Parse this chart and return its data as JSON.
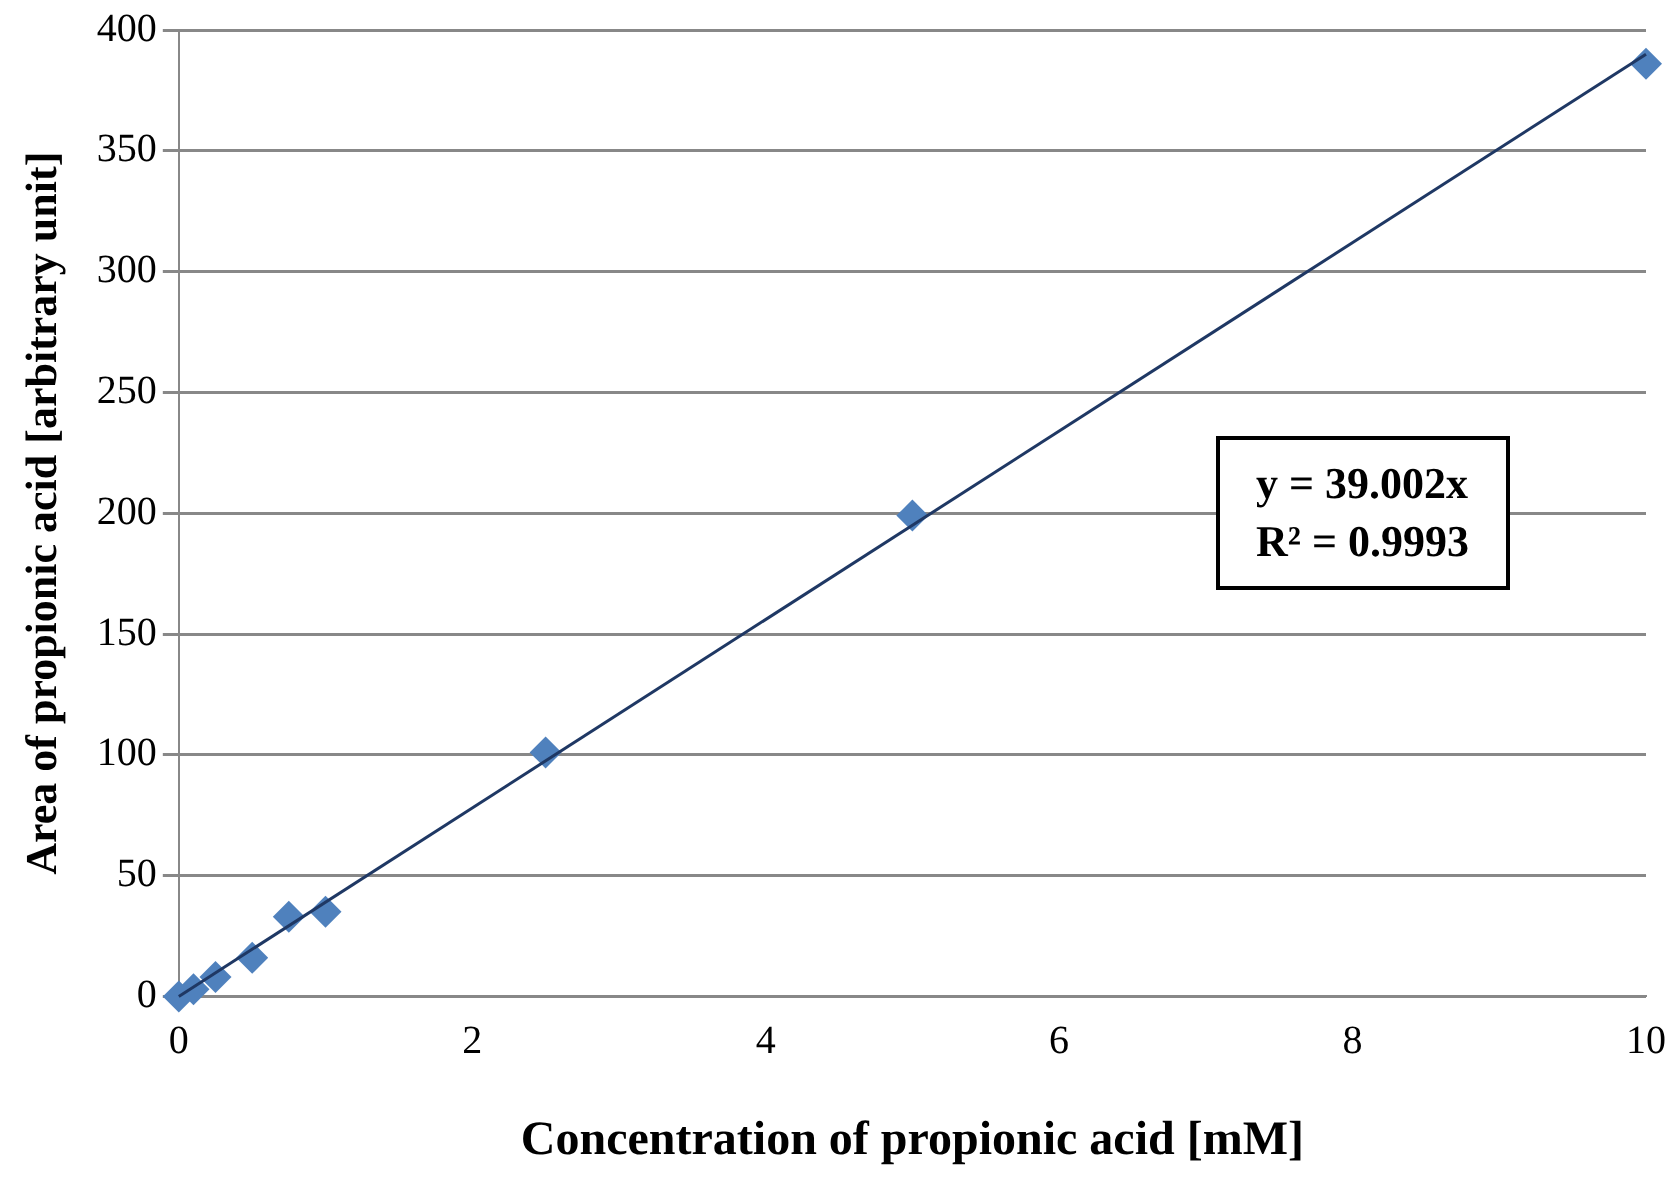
{
  "chart_data": {
    "type": "scatter",
    "xlabel": "Concentration of propionic acid [mM]",
    "ylabel": "Area of propionic acid [arbitrary unit]",
    "series": [
      {
        "type": "scatter",
        "color": "#4f81bd",
        "x": [
          0,
          0.1,
          0.25,
          0.5,
          0.75,
          1,
          2.5,
          5,
          10
        ],
        "values": [
          0,
          3,
          8,
          16,
          33,
          35,
          101,
          199,
          386
        ],
        "marker": "diamond"
      },
      {
        "type": "line",
        "color": "#1f3864",
        "x": [
          0,
          10
        ],
        "values": [
          0,
          390
        ],
        "marker": "none"
      }
    ],
    "xlim": [
      0,
      10
    ],
    "xticks": [
      0,
      2,
      4,
      6,
      8,
      10
    ],
    "ylim": [
      0,
      400
    ],
    "yticks": [
      0,
      50,
      100,
      150,
      200,
      250,
      300,
      350,
      400
    ],
    "grid": "y",
    "legend": false,
    "annotations": [
      "y = 39.002x\nR² = 0.9993"
    ]
  }
}
